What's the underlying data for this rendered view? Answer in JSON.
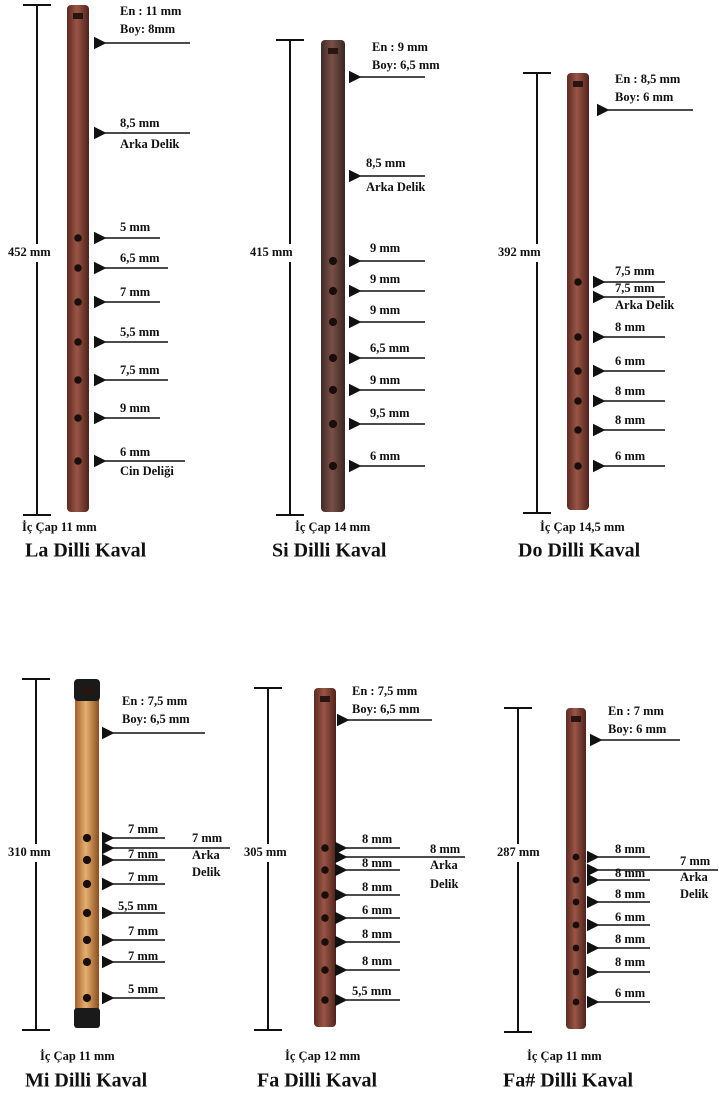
{
  "kavals": [
    {
      "name": "La Dilli Kaval",
      "length": "452 mm",
      "bore": "İç Çap 11 mm",
      "labels": [
        [
          "En : 11 mm",
          "Boy: 8mm"
        ],
        [
          "8,5 mm",
          "Arka Delik"
        ],
        [
          "5 mm"
        ],
        [
          "6,5 mm"
        ],
        [
          "7 mm"
        ],
        [
          "5,5 mm"
        ],
        [
          "7,5 mm"
        ],
        [
          "9 mm"
        ],
        [
          "6 mm",
          "Cin Deliği"
        ]
      ]
    },
    {
      "name": "Si Dilli Kaval",
      "length": "415 mm",
      "bore": "İç Çap 14 mm",
      "labels": [
        [
          "En : 9 mm",
          "Boy: 6,5 mm"
        ],
        [
          "8,5 mm",
          "Arka Delik"
        ],
        [
          "9 mm"
        ],
        [
          "9 mm"
        ],
        [
          "9 mm"
        ],
        [
          "6,5 mm"
        ],
        [
          "9 mm"
        ],
        [
          "9,5 mm"
        ],
        [
          "6 mm"
        ]
      ]
    },
    {
      "name": "Do Dilli Kaval",
      "length": "392 mm",
      "bore": "İç Çap 14,5 mm",
      "labels": [
        [
          "En : 8,5 mm",
          "Boy: 6 mm"
        ],
        [
          "7,5 mm"
        ],
        [
          "7,5 mm",
          "Arka Delik"
        ],
        [
          "8 mm"
        ],
        [
          "6 mm"
        ],
        [
          "8 mm"
        ],
        [
          "8 mm"
        ],
        [
          "6 mm"
        ]
      ]
    },
    {
      "name": "Mi Dilli Kaval",
      "length": "310 mm",
      "bore": "İç Çap 11 mm",
      "labels": [
        [
          "En : 7,5 mm",
          "Boy: 6,5 mm"
        ],
        [
          "7 mm"
        ],
        [
          "7 mm",
          "Arka",
          "Delik"
        ],
        [
          "7 mm"
        ],
        [
          "7 mm"
        ],
        [
          "5,5 mm"
        ],
        [
          "7 mm"
        ],
        [
          "7 mm"
        ],
        [
          "5 mm"
        ]
      ]
    },
    {
      "name": "Fa Dilli Kaval",
      "length": "305 mm",
      "bore": "İç Çap 12 mm",
      "labels": [
        [
          "En : 7,5 mm",
          "Boy: 6,5 mm"
        ],
        [
          "8 mm"
        ],
        [
          "8 mm",
          "Arka",
          "Delik"
        ],
        [
          "8 mm"
        ],
        [
          "8 mm"
        ],
        [
          "6 mm"
        ],
        [
          "8 mm"
        ],
        [
          "8 mm"
        ],
        [
          "5,5 mm"
        ]
      ]
    },
    {
      "name": "Fa# Dilli Kaval",
      "length": "287 mm",
      "bore": "İç Çap 11 mm",
      "labels": [
        [
          "En : 7 mm",
          "Boy: 6 mm"
        ],
        [
          "8 mm"
        ],
        [
          "7 mm",
          "Arka",
          "Delik"
        ],
        [
          "8 mm"
        ],
        [
          "8 mm"
        ],
        [
          "6 mm"
        ],
        [
          "8 mm"
        ],
        [
          "8 mm"
        ],
        [
          "6 mm"
        ]
      ]
    }
  ]
}
